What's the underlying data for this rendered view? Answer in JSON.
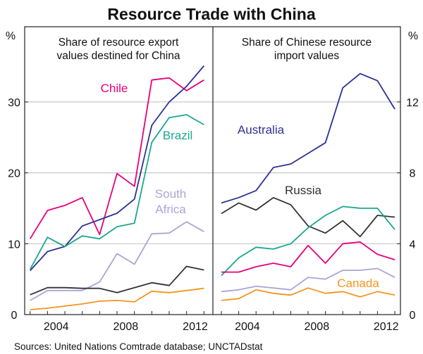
{
  "chart_data": [
    {
      "type": "line",
      "title": "Resource Trade with China",
      "subtitle": "Share of resource export values destined for China",
      "ylabel": "%",
      "ylim": [
        0,
        35
      ],
      "yticks": [
        0,
        10,
        20,
        30
      ],
      "xticks": [
        2004,
        2008,
        2012
      ],
      "grid": true,
      "x": [
        2002,
        2003,
        2004,
        2005,
        2006,
        2007,
        2008,
        2009,
        2010,
        2011,
        2012
      ],
      "series": [
        {
          "name": "Chile",
          "color": "#e6007e",
          "values": [
            10.7,
            14.7,
            15.4,
            16.5,
            11.3,
            19.9,
            18.1,
            33.1,
            33.4,
            31.6,
            33.1
          ]
        },
        {
          "name": "",
          "color": "#2e3192",
          "values": [
            6.2,
            8.9,
            9.6,
            12.5,
            13.4,
            14.3,
            16.3,
            26.7,
            30.0,
            32.2,
            35.1
          ]
        },
        {
          "name": "Brazil",
          "color": "#1aa88e",
          "values": [
            6.4,
            10.9,
            9.6,
            11.1,
            10.7,
            12.4,
            12.9,
            24.3,
            27.8,
            28.2,
            26.8
          ]
        },
        {
          "name": "South Africa",
          "color": "#a9a6d6",
          "values": [
            2.0,
            3.4,
            3.4,
            3.4,
            4.6,
            8.6,
            7.1,
            11.4,
            11.5,
            13.1,
            11.7
          ]
        },
        {
          "name": "",
          "color": "#333333",
          "values": [
            2.8,
            3.8,
            3.8,
            3.7,
            3.7,
            3.1,
            3.8,
            4.5,
            4.1,
            6.8,
            6.3
          ]
        },
        {
          "name": "",
          "color": "#f7941d",
          "values": [
            0.7,
            0.9,
            1.2,
            1.5,
            1.9,
            2.0,
            1.8,
            3.3,
            3.1,
            3.4,
            3.7
          ]
        }
      ]
    },
    {
      "type": "line",
      "subtitle": "Share of Chinese resource import values",
      "ylabel": "%",
      "ylim": [
        0,
        14
      ],
      "yticks": [
        0,
        4,
        8,
        12
      ],
      "xticks": [
        2004,
        2008,
        2012
      ],
      "grid": true,
      "x": [
        2002,
        2003,
        2004,
        2005,
        2006,
        2007,
        2008,
        2009,
        2010,
        2011,
        2012
      ],
      "series": [
        {
          "name": "Australia",
          "color": "#2e3192",
          "values": [
            6.3,
            6.6,
            7.0,
            8.3,
            8.5,
            9.1,
            9.7,
            12.8,
            13.6,
            13.2,
            11.6
          ]
        },
        {
          "name": "Russia",
          "color": "#333333",
          "values": [
            5.7,
            6.3,
            5.9,
            6.6,
            6.2,
            5.0,
            4.6,
            5.3,
            4.4,
            5.6,
            5.5
          ]
        },
        {
          "name": "",
          "color": "#1aa88e",
          "values": [
            2.2,
            3.2,
            3.8,
            3.7,
            4.0,
            4.9,
            5.6,
            6.1,
            6.0,
            6.0,
            4.8
          ]
        },
        {
          "name": "",
          "color": "#e6007e",
          "values": [
            2.4,
            2.4,
            2.7,
            2.9,
            2.7,
            3.9,
            2.9,
            4.0,
            4.1,
            3.4,
            3.1
          ]
        },
        {
          "name": "",
          "color": "#a9a6d6",
          "values": [
            1.3,
            1.4,
            1.6,
            1.5,
            1.4,
            2.1,
            2.0,
            2.5,
            2.5,
            2.6,
            2.1
          ]
        },
        {
          "name": "Canada",
          "color": "#f7941d",
          "values": [
            0.8,
            0.9,
            1.4,
            1.2,
            1.1,
            1.5,
            1.2,
            1.3,
            1.0,
            1.3,
            1.1
          ]
        }
      ]
    }
  ],
  "labels": {
    "left_subtitle_1": "Share of resource export",
    "left_subtitle_2": "values destined for China",
    "right_subtitle_1": "Share of Chinese resource",
    "right_subtitle_2": "import values",
    "south_1": "South",
    "south_2": "Africa"
  },
  "source": "Sources: United Nations Comtrade database; UNCTADstat"
}
